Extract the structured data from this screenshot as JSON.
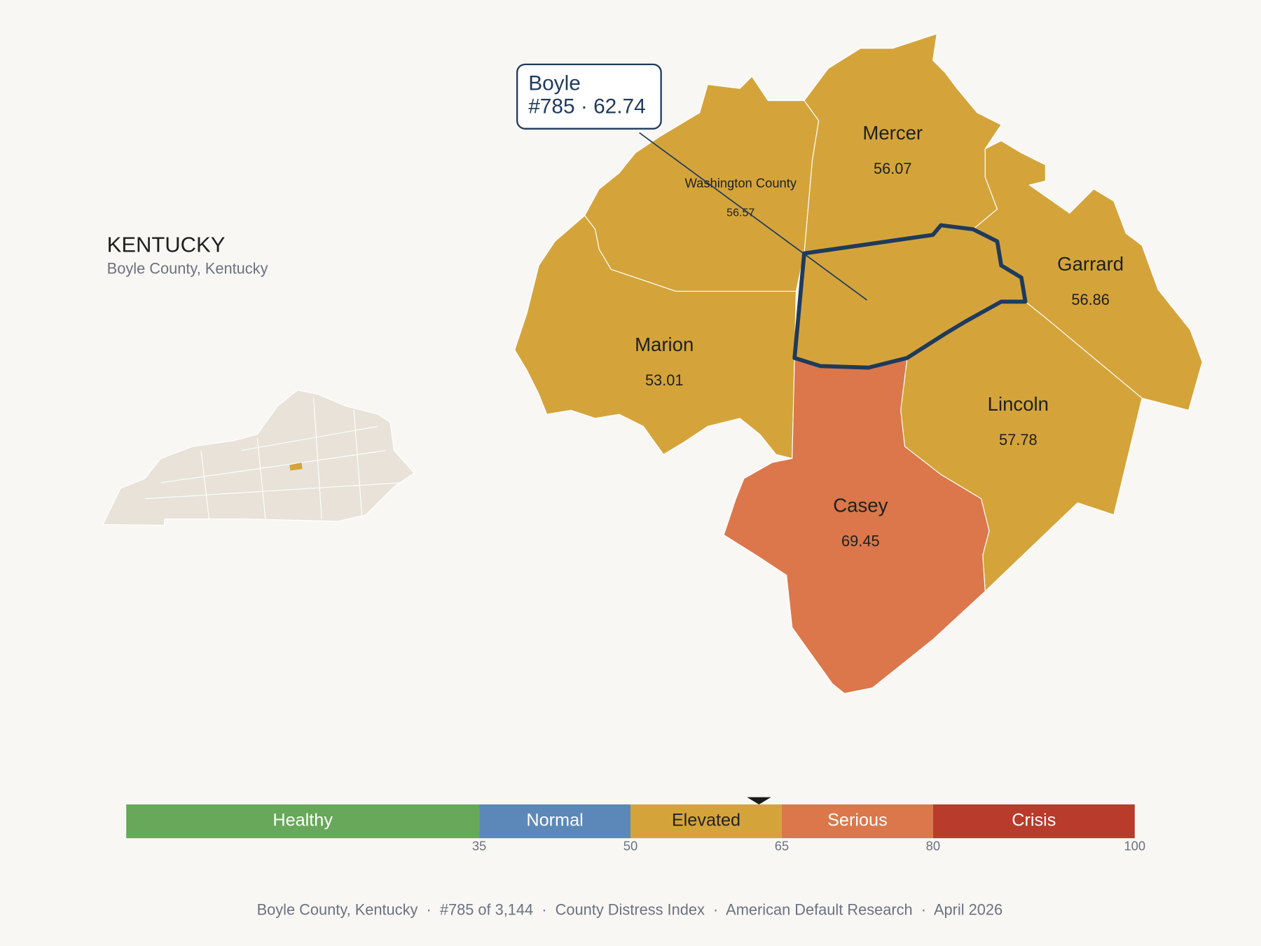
{
  "header": {
    "title": "KENTUCKY",
    "subtitle": "Boyle County, Kentucky"
  },
  "callout": {
    "name": "Boyle",
    "detail": "#785 · 62.74",
    "value": 62.74
  },
  "counties": [
    {
      "name": "Washington County",
      "value": 56.57
    },
    {
      "name": "Mercer",
      "value": 56.07
    },
    {
      "name": "Marion",
      "value": 53.01
    },
    {
      "name": "Garrard",
      "value": 56.86
    },
    {
      "name": "Lincoln",
      "value": 57.78
    },
    {
      "name": "Casey",
      "value": 69.45
    }
  ],
  "legend": {
    "range": [
      0,
      100
    ],
    "ticks": [
      35,
      50,
      65,
      80,
      100
    ],
    "bands": [
      {
        "name": "Healthy",
        "color": "#67a85a",
        "text_color": "#ffffff"
      },
      {
        "name": "Normal",
        "color": "#5b88b8",
        "text_color": "#ffffff"
      },
      {
        "name": "Elevated",
        "color": "#d4a43b",
        "text_color": "#222222"
      },
      {
        "name": "Serious",
        "color": "#db774a",
        "text_color": "#ffffff"
      },
      {
        "name": "Crisis",
        "color": "#b83b2b",
        "text_color": "#ffffff"
      }
    ]
  },
  "footer": "Boyle County, Kentucky  ·  #785 of 3,144  ·  County Distress Index  ·  American Default Research  ·  April 2026"
}
